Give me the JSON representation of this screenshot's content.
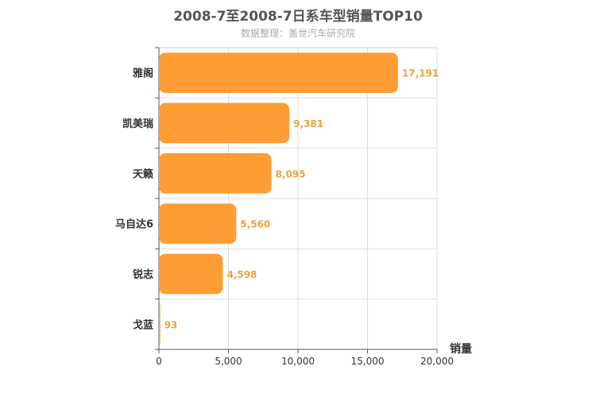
{
  "chart_data": {
    "type": "bar",
    "orientation": "horizontal",
    "title": "2008-7至2008-7日系车型销量TOP10",
    "subtitle": "数据整理：盖世汽车研究院",
    "categories": [
      "雅阁",
      "凯美瑞",
      "天籁",
      "马自达6",
      "锐志",
      "戈蓝"
    ],
    "values": [
      17191,
      9381,
      8095,
      5560,
      4598,
      93
    ],
    "value_labels": [
      "17,191",
      "9,381",
      "8,095",
      "5,560",
      "4,598",
      "93"
    ],
    "xlabel": "销量",
    "ylabel": "",
    "xlim": [
      0,
      20000
    ],
    "xticks": [
      0,
      5000,
      10000,
      15000,
      20000
    ],
    "xtick_labels": [
      "0",
      "5,000",
      "10,000",
      "15,000",
      "20,000"
    ],
    "grid": true,
    "bar_color": "#ff9c33",
    "label_color": "#f0a040"
  }
}
